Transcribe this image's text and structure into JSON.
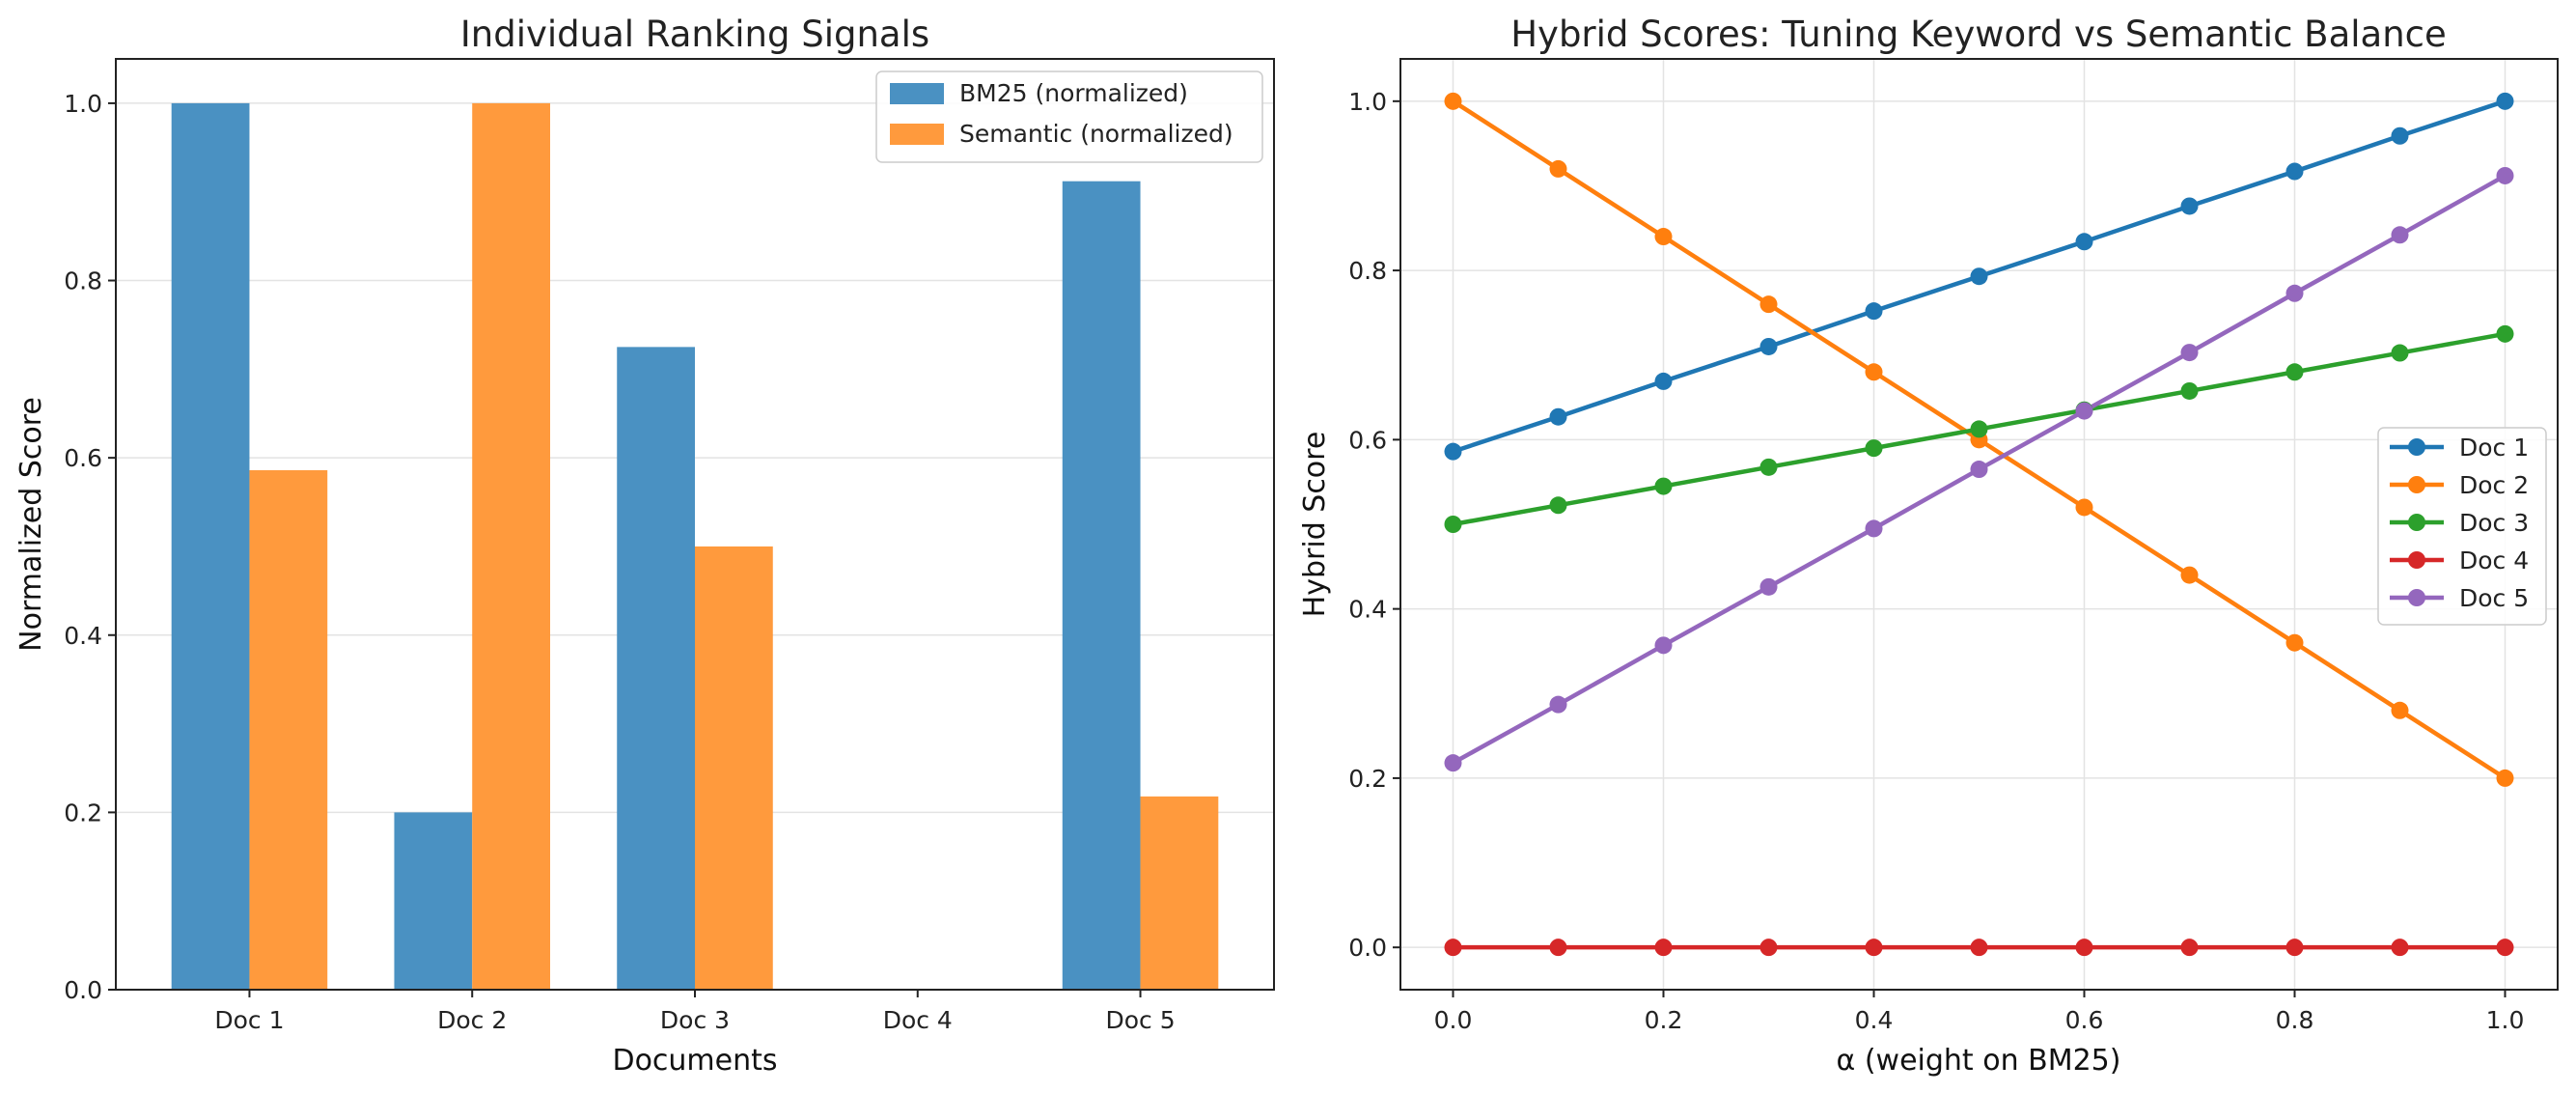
{
  "chart_data": [
    {
      "type": "bar",
      "title": "Individual Ranking Signals",
      "xlabel": "Documents",
      "ylabel": "Normalized Score",
      "categories": [
        "Doc 1",
        "Doc 2",
        "Doc 3",
        "Doc 4",
        "Doc 5"
      ],
      "series": [
        {
          "name": "BM25 (normalized)",
          "values": [
            1.0,
            0.2,
            0.725,
            0.0,
            0.912
          ],
          "color": "#4a91c2"
        },
        {
          "name": "Semantic (normalized)",
          "values": [
            0.586,
            1.0,
            0.5,
            0.0,
            0.218
          ],
          "color": "#ff9a3d"
        }
      ],
      "ylim": [
        0,
        1.05
      ],
      "yticks": [
        "0.0",
        "0.2",
        "0.4",
        "0.6",
        "0.8",
        "1.0"
      ],
      "grid": "horizontal",
      "legend": "top-right"
    },
    {
      "type": "line",
      "title": "Hybrid Scores: Tuning Keyword vs Semantic Balance",
      "xlabel": "α (weight on BM25)",
      "ylabel": "Hybrid Score",
      "x": [
        0.0,
        0.1,
        0.2,
        0.3,
        0.4,
        0.5,
        0.6,
        0.7,
        0.8,
        0.9,
        1.0
      ],
      "series": [
        {
          "name": "Doc 1",
          "color": "#1f77b4",
          "values": [
            0.586,
            0.627,
            0.669,
            0.71,
            0.752,
            0.793,
            0.834,
            0.876,
            0.917,
            0.959,
            1.0
          ]
        },
        {
          "name": "Doc 2",
          "color": "#ff7f0e",
          "values": [
            1.0,
            0.92,
            0.84,
            0.76,
            0.68,
            0.6,
            0.52,
            0.44,
            0.36,
            0.28,
            0.2
          ]
        },
        {
          "name": "Doc 3",
          "color": "#2ca02c",
          "values": [
            0.5,
            0.5225,
            0.545,
            0.5675,
            0.59,
            0.6125,
            0.635,
            0.6575,
            0.68,
            0.7025,
            0.725
          ]
        },
        {
          "name": "Doc 4",
          "color": "#d62728",
          "values": [
            0,
            0,
            0,
            0,
            0,
            0,
            0,
            0,
            0,
            0,
            0
          ]
        },
        {
          "name": "Doc 5",
          "color": "#9467bd",
          "values": [
            0.218,
            0.287,
            0.357,
            0.426,
            0.495,
            0.565,
            0.634,
            0.703,
            0.773,
            0.842,
            0.912
          ]
        }
      ],
      "xlim": [
        -0.05,
        1.05
      ],
      "ylim": [
        -0.05,
        1.05
      ],
      "xticks": [
        "0.0",
        "0.2",
        "0.4",
        "0.6",
        "0.8",
        "1.0"
      ],
      "yticks": [
        "0.0",
        "0.2",
        "0.4",
        "0.6",
        "0.8",
        "1.0"
      ],
      "grid": "both",
      "legend": "center-right"
    }
  ]
}
